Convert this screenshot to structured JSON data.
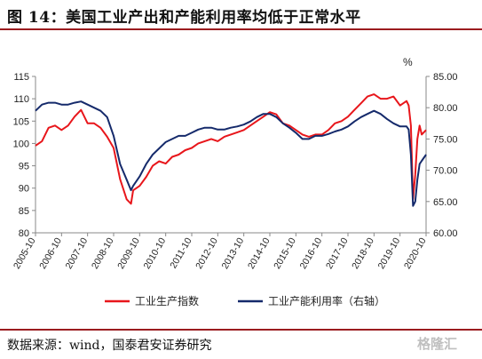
{
  "title": "图 14：美国工业产出和产能利用率均低于正常水平",
  "source": "数据来源：wind，国泰君安证券研究",
  "watermark": "格隆汇",
  "colors": {
    "series1": "#e8161b",
    "series2": "#152a6b",
    "accent": "#9b1c1f"
  },
  "chart_data": {
    "type": "line",
    "unit_label": "%",
    "x_ticks": [
      "2005-10",
      "2006-10",
      "2007-10",
      "2008-10",
      "2009-10",
      "2010-10",
      "2011-10",
      "2012-10",
      "2013-10",
      "2014-10",
      "2015-10",
      "2016-10",
      "2017-10",
      "2018-10",
      "2019-10",
      "2020-10"
    ],
    "y_left": {
      "min": 80,
      "max": 115,
      "step": 5,
      "ticks": [
        "80",
        "85",
        "90",
        "95",
        "100",
        "105",
        "110",
        "115"
      ]
    },
    "y_right": {
      "min": 60,
      "max": 85,
      "step": 5,
      "ticks": [
        "60.00",
        "65.00",
        "70.00",
        "75.00",
        "80.00",
        "85.00"
      ]
    },
    "legend_position": "bottom",
    "series": [
      {
        "name": "工业生产指数",
        "axis": "left",
        "points": [
          [
            "2005-10",
            99.5
          ],
          [
            "2006-01",
            100.5
          ],
          [
            "2006-04",
            103.5
          ],
          [
            "2006-07",
            104.0
          ],
          [
            "2006-10",
            103.0
          ],
          [
            "2007-01",
            104.0
          ],
          [
            "2007-04",
            106.0
          ],
          [
            "2007-07",
            107.5
          ],
          [
            "2007-10",
            104.5
          ],
          [
            "2008-01",
            104.5
          ],
          [
            "2008-04",
            103.5
          ],
          [
            "2008-07",
            101.5
          ],
          [
            "2008-10",
            99.0
          ],
          [
            "2009-01",
            92.0
          ],
          [
            "2009-04",
            87.5
          ],
          [
            "2009-06",
            86.5
          ],
          [
            "2009-07",
            89.5
          ],
          [
            "2009-10",
            90.5
          ],
          [
            "2010-01",
            92.5
          ],
          [
            "2010-04",
            95.0
          ],
          [
            "2010-07",
            96.0
          ],
          [
            "2010-10",
            95.5
          ],
          [
            "2011-01",
            97.0
          ],
          [
            "2011-04",
            97.5
          ],
          [
            "2011-07",
            98.5
          ],
          [
            "2011-10",
            99.0
          ],
          [
            "2012-01",
            100.0
          ],
          [
            "2012-04",
            100.5
          ],
          [
            "2012-07",
            101.0
          ],
          [
            "2012-10",
            100.5
          ],
          [
            "2013-01",
            101.5
          ],
          [
            "2013-04",
            102.0
          ],
          [
            "2013-07",
            102.5
          ],
          [
            "2013-10",
            103.0
          ],
          [
            "2014-01",
            104.0
          ],
          [
            "2014-04",
            105.0
          ],
          [
            "2014-07",
            106.0
          ],
          [
            "2014-10",
            107.0
          ],
          [
            "2015-01",
            106.5
          ],
          [
            "2015-04",
            104.5
          ],
          [
            "2015-07",
            104.0
          ],
          [
            "2015-10",
            103.0
          ],
          [
            "2016-01",
            102.0
          ],
          [
            "2016-04",
            101.5
          ],
          [
            "2016-07",
            102.0
          ],
          [
            "2016-10",
            102.0
          ],
          [
            "2017-01",
            103.0
          ],
          [
            "2017-04",
            104.5
          ],
          [
            "2017-07",
            105.0
          ],
          [
            "2017-10",
            106.0
          ],
          [
            "2018-01",
            107.5
          ],
          [
            "2018-04",
            109.0
          ],
          [
            "2018-07",
            110.5
          ],
          [
            "2018-10",
            111.0
          ],
          [
            "2019-01",
            110.0
          ],
          [
            "2019-04",
            110.0
          ],
          [
            "2019-07",
            110.5
          ],
          [
            "2019-10",
            108.5
          ],
          [
            "2020-01",
            109.5
          ],
          [
            "2020-02",
            108.5
          ],
          [
            "2020-03",
            104.0
          ],
          [
            "2020-04",
            87.5
          ],
          [
            "2020-05",
            93.0
          ],
          [
            "2020-06",
            101.0
          ],
          [
            "2020-07",
            104.0
          ],
          [
            "2020-08",
            102.0
          ],
          [
            "2020-10",
            103.0
          ]
        ]
      },
      {
        "name": "工业产能利用率（右轴）",
        "axis": "right",
        "points": [
          [
            "2005-10",
            79.5
          ],
          [
            "2006-01",
            80.5
          ],
          [
            "2006-04",
            80.8
          ],
          [
            "2006-07",
            80.8
          ],
          [
            "2006-10",
            80.5
          ],
          [
            "2007-01",
            80.5
          ],
          [
            "2007-04",
            80.8
          ],
          [
            "2007-07",
            81.0
          ],
          [
            "2007-10",
            80.5
          ],
          [
            "2008-01",
            80.0
          ],
          [
            "2008-04",
            79.5
          ],
          [
            "2008-07",
            78.5
          ],
          [
            "2008-10",
            75.5
          ],
          [
            "2009-01",
            71.0
          ],
          [
            "2009-04",
            68.5
          ],
          [
            "2009-06",
            66.8
          ],
          [
            "2009-07",
            67.5
          ],
          [
            "2009-10",
            69.0
          ],
          [
            "2010-01",
            71.0
          ],
          [
            "2010-04",
            72.5
          ],
          [
            "2010-07",
            73.5
          ],
          [
            "2010-10",
            74.5
          ],
          [
            "2011-01",
            75.0
          ],
          [
            "2011-04",
            75.5
          ],
          [
            "2011-07",
            75.5
          ],
          [
            "2011-10",
            76.0
          ],
          [
            "2012-01",
            76.5
          ],
          [
            "2012-04",
            76.8
          ],
          [
            "2012-07",
            76.8
          ],
          [
            "2012-10",
            76.5
          ],
          [
            "2013-01",
            76.5
          ],
          [
            "2013-04",
            76.8
          ],
          [
            "2013-07",
            77.0
          ],
          [
            "2013-10",
            77.3
          ],
          [
            "2014-01",
            77.8
          ],
          [
            "2014-04",
            78.5
          ],
          [
            "2014-07",
            79.0
          ],
          [
            "2014-10",
            79.0
          ],
          [
            "2015-01",
            78.5
          ],
          [
            "2015-04",
            77.5
          ],
          [
            "2015-07",
            76.8
          ],
          [
            "2015-10",
            76.0
          ],
          [
            "2016-01",
            75.0
          ],
          [
            "2016-04",
            75.0
          ],
          [
            "2016-07",
            75.5
          ],
          [
            "2016-10",
            75.5
          ],
          [
            "2017-01",
            75.8
          ],
          [
            "2017-04",
            76.2
          ],
          [
            "2017-07",
            76.5
          ],
          [
            "2017-10",
            77.0
          ],
          [
            "2018-01",
            77.8
          ],
          [
            "2018-04",
            78.5
          ],
          [
            "2018-07",
            79.0
          ],
          [
            "2018-10",
            79.5
          ],
          [
            "2019-01",
            79.0
          ],
          [
            "2019-04",
            78.2
          ],
          [
            "2019-07",
            77.5
          ],
          [
            "2019-10",
            77.0
          ],
          [
            "2020-01",
            77.0
          ],
          [
            "2020-02",
            76.5
          ],
          [
            "2020-03",
            72.5
          ],
          [
            "2020-04",
            64.3
          ],
          [
            "2020-05",
            65.0
          ],
          [
            "2020-06",
            68.5
          ],
          [
            "2020-07",
            71.0
          ],
          [
            "2020-08",
            71.5
          ],
          [
            "2020-10",
            72.5
          ]
        ]
      }
    ]
  }
}
